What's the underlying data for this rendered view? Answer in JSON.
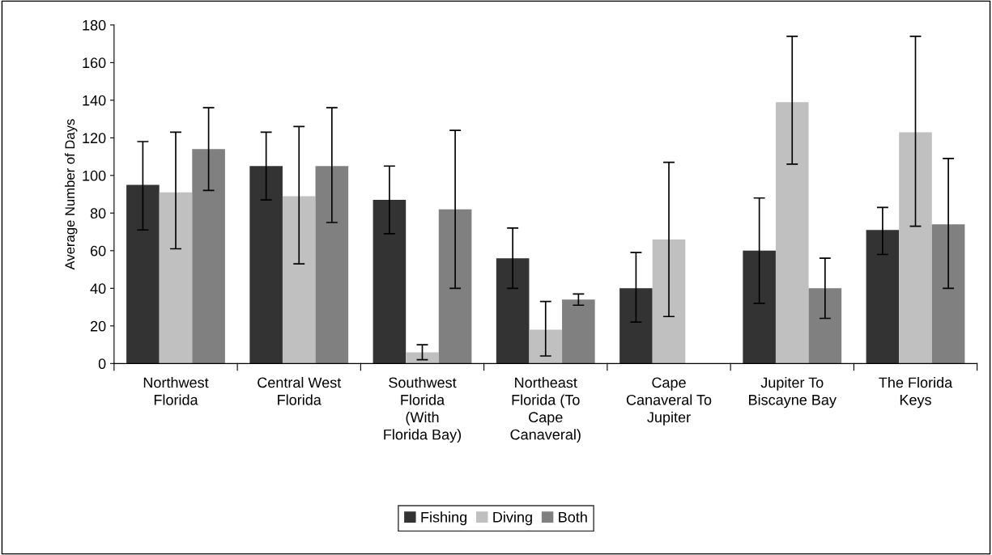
{
  "chart_data": {
    "type": "bar",
    "ylabel": "Average Number of Days",
    "categories": [
      "Northwest\nFlorida",
      "Central West\nFlorida",
      "Southwest\nFlorida\n(With\nFlorida Bay)",
      "Northeast\nFlorida (To\nCape\nCanaveral)",
      "Cape\nCanaveral To\nJupiter",
      "Jupiter To\nBiscayne Bay",
      "The Florida\nKeys"
    ],
    "series": [
      {
        "name": "Fishing",
        "color": "#333333",
        "values": [
          95,
          105,
          87,
          56,
          40,
          60,
          71
        ],
        "errors": [
          [
            71,
            118
          ],
          [
            87,
            123
          ],
          [
            69,
            105
          ],
          [
            40,
            72
          ],
          [
            22,
            59
          ],
          [
            32,
            88
          ],
          [
            58,
            83
          ]
        ]
      },
      {
        "name": "Diving",
        "color": "#c0c0c0",
        "values": [
          91,
          89,
          6,
          18,
          66,
          139,
          123
        ],
        "errors": [
          [
            61,
            123
          ],
          [
            53,
            126
          ],
          [
            2,
            10
          ],
          [
            4,
            33
          ],
          [
            25,
            107
          ],
          [
            106,
            174
          ],
          [
            73,
            174
          ]
        ]
      },
      {
        "name": "Both",
        "color": "#808080",
        "values": [
          114,
          105,
          82,
          34,
          null,
          40,
          74
        ],
        "errors": [
          [
            92,
            136
          ],
          [
            75,
            136
          ],
          [
            40,
            124
          ],
          [
            31,
            37
          ],
          null,
          [
            24,
            56
          ],
          [
            40,
            109
          ]
        ]
      }
    ],
    "ylim": [
      0,
      180
    ],
    "yticks": [
      0,
      20,
      40,
      60,
      80,
      100,
      120,
      140,
      160,
      180
    ],
    "grid": false,
    "legend": "bottom"
  }
}
